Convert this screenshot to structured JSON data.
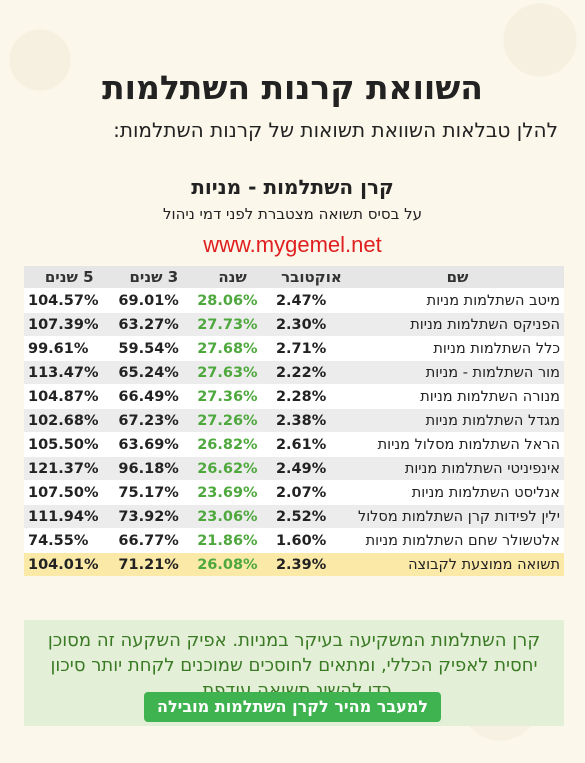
{
  "header": {
    "title": "השוואת קרנות השתלמות",
    "subtitle": "להלן טבלאות השוואת תשואות של קרנות השתלמות:"
  },
  "table": {
    "title": "קרן השתלמות - מניות",
    "subtitle": "על בסיס תשואה מצטברת לפני דמי ניהול",
    "url": "www.mygemel.net",
    "columns": {
      "name": "שם",
      "october": "אוקטובר",
      "year": "שנה",
      "three_years": "3 שנים",
      "five_years": "5 שנים"
    },
    "rows": [
      {
        "name": "מיטב השתלמות מניות",
        "october": "2.47%",
        "year": "28.06%",
        "three_years": "69.01%",
        "five_years": "104.57%"
      },
      {
        "name": "הפניקס השתלמות מניות",
        "october": "2.30%",
        "year": "27.73%",
        "three_years": "63.27%",
        "five_years": "107.39%"
      },
      {
        "name": "כלל השתלמות מניות",
        "october": "2.71%",
        "year": "27.68%",
        "three_years": "59.54%",
        "five_years": "99.61%"
      },
      {
        "name": "מור השתלמות - מניות",
        "october": "2.22%",
        "year": "27.63%",
        "three_years": "65.24%",
        "five_years": "113.47%"
      },
      {
        "name": "מנורה השתלמות מניות",
        "october": "2.28%",
        "year": "27.36%",
        "three_years": "66.49%",
        "five_years": "104.87%"
      },
      {
        "name": "מגדל השתלמות מניות",
        "october": "2.38%",
        "year": "27.26%",
        "three_years": "67.23%",
        "five_years": "102.68%"
      },
      {
        "name": "הראל השתלמות מסלול מניות",
        "october": "2.61%",
        "year": "26.82%",
        "three_years": "63.69%",
        "five_years": "105.50%"
      },
      {
        "name": "אינפיניטי השתלמות מניות",
        "october": "2.49%",
        "year": "26.62%",
        "three_years": "96.18%",
        "five_years": "121.37%"
      },
      {
        "name": "אנליסט השתלמות מניות",
        "october": "2.07%",
        "year": "23.69%",
        "three_years": "75.17%",
        "five_years": "107.50%"
      },
      {
        "name": "ילין לפידות קרן השתלמות מסלול",
        "october": "2.52%",
        "year": "23.06%",
        "three_years": "73.92%",
        "five_years": "111.94%"
      },
      {
        "name": "אלטשולר שחם השתלמות מניות",
        "october": "1.60%",
        "year": "21.86%",
        "three_years": "66.77%",
        "five_years": "74.55%"
      }
    ],
    "average": {
      "name": "תשואה ממוצעת לקבוצה",
      "october": "2.39%",
      "year": "26.08%",
      "three_years": "71.21%",
      "five_years": "104.01%"
    }
  },
  "cta": {
    "text": "קרן השתלמות המשקיעה בעיקר במניות. אפיק השקעה זה מסוכן יחסית לאפיק הכללי, ומתאים לחוסכים שמוכנים לקחת יותר סיכון כדי להשיג תשואה עודפת.",
    "button_label": "למעבר מהיר לקרן השתלמות מובילה"
  },
  "colors": {
    "year_green": "#4fa83e",
    "url_red": "#e02020",
    "average_row": "#fbe9a8",
    "cta_bg": "#e3efd6",
    "button_green": "#3fb34f"
  }
}
